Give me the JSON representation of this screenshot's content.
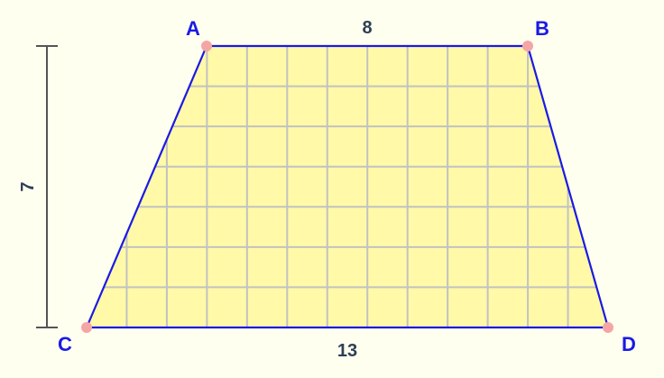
{
  "vertices": [
    {
      "id": "A",
      "label": "A"
    },
    {
      "id": "B",
      "label": "B"
    },
    {
      "id": "C",
      "label": "C"
    },
    {
      "id": "D",
      "label": "D"
    }
  ],
  "measurements": {
    "top_base": "8",
    "bottom_base": "13",
    "height": "7"
  },
  "colors": {
    "background": "#fffff0",
    "fill": "#fff9a8",
    "outline": "#1a1ae6",
    "grid": "#c2c2c2",
    "vertex_dot": "#f4a6a6",
    "label": "#1a1ae6",
    "measure": "#2e3f55",
    "dimension_line": "#555555"
  }
}
